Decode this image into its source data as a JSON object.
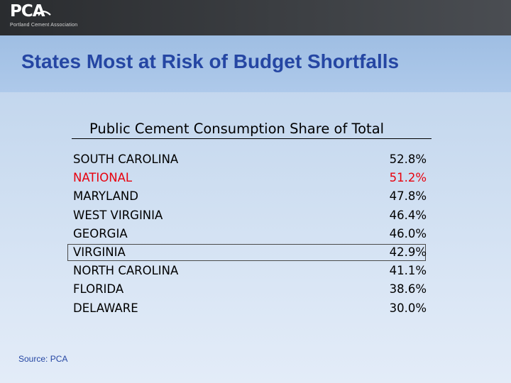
{
  "header": {
    "logo_text": "PCA",
    "logo_subtext": "Portland Cement Association"
  },
  "slide": {
    "title": "States Most at Risk of Budget Shortfalls",
    "subtitle": "Public Cement Consumption Share of Total",
    "source": "Source: PCA"
  },
  "rows": [
    {
      "state": "SOUTH CAROLINA",
      "share": "52.8%"
    },
    {
      "state": "NATIONAL",
      "share": "51.2%"
    },
    {
      "state": "MARYLAND",
      "share": "47.8%"
    },
    {
      "state": "WEST VIRGINIA",
      "share": "46.4%"
    },
    {
      "state": "GEORGIA",
      "share": "46.0%"
    },
    {
      "state": "VIRGINIA",
      "share": "42.9%"
    },
    {
      "state": "NORTH CAROLINA",
      "share": "41.1%"
    },
    {
      "state": "FLORIDA",
      "share": "38.6%"
    },
    {
      "state": "DELAWARE",
      "share": "30.0%"
    }
  ],
  "colors": {
    "title": "#2546a3",
    "highlight_row": "#e8000d",
    "boxed_row_border": "#4a4a4a"
  }
}
